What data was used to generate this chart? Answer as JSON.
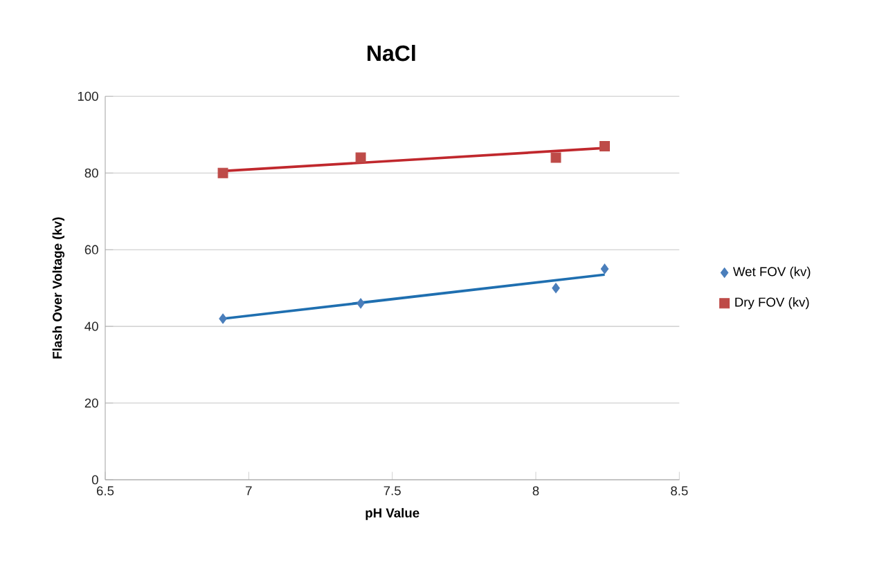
{
  "chart_data": {
    "type": "scatter",
    "title": "NaCl",
    "xlabel": "pH Value",
    "ylabel": "Flash Over Voltage (kv)",
    "xlim": [
      6.5,
      8.5
    ],
    "xticks": [
      6.5,
      7,
      7.5,
      8,
      8.5
    ],
    "ylim": [
      0,
      100
    ],
    "yticks": [
      0,
      20,
      40,
      60,
      80,
      100
    ],
    "grid": "y",
    "legend": "right",
    "series": [
      {
        "name": "Wet FOV (kv)",
        "color": "#4a7ebb",
        "marker": "diamond",
        "x": [
          6.91,
          7.39,
          8.07,
          8.24
        ],
        "values": [
          42,
          46,
          50,
          55
        ]
      },
      {
        "name": "Dry FOV (kv)",
        "color": "#be4b48",
        "marker": "square",
        "x": [
          6.91,
          7.39,
          8.07,
          8.24
        ],
        "values": [
          80,
          84,
          84,
          87
        ]
      },
      {
        "type": "line",
        "color": "#1f6fb0",
        "marker": "none",
        "x": [
          6.91,
          8.24
        ],
        "values": [
          42,
          53.5
        ]
      },
      {
        "type": "line",
        "color": "#c0282d",
        "marker": "none",
        "x": [
          6.91,
          8.24
        ],
        "values": [
          80.5,
          86.5
        ]
      }
    ]
  }
}
